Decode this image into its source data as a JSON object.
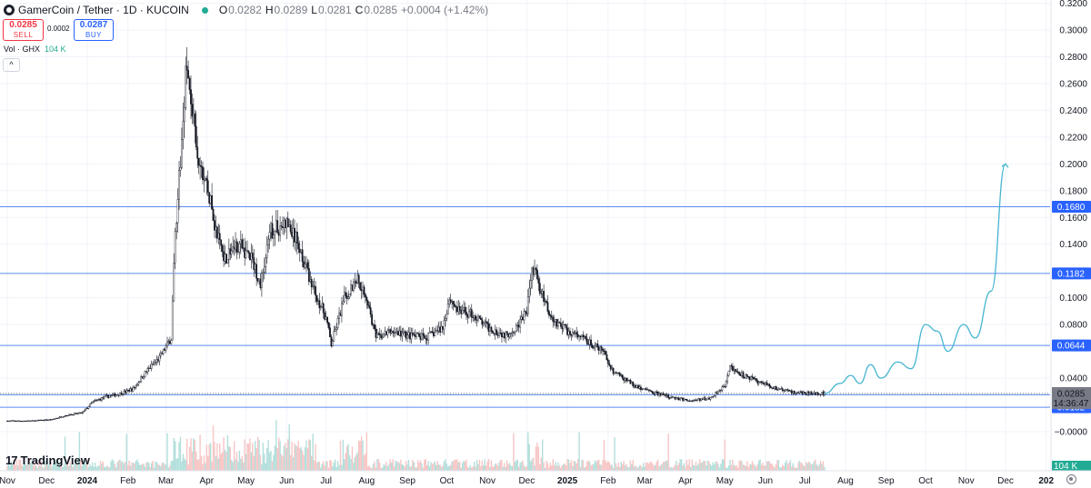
{
  "header": {
    "symbol": "GamerCoin / Tether · 1D · KUCOIN",
    "o_label": "O",
    "o_value": "0.0282",
    "h_label": "H",
    "h_value": "0.0289",
    "l_label": "L",
    "l_value": "0.0281",
    "c_label": "C",
    "c_value": "0.0285",
    "change": "+0.0004 (+1.42%)"
  },
  "trade": {
    "sell_price": "0.0285",
    "sell_label": "SELL",
    "spread": "0.0002",
    "buy_price": "0.0287",
    "buy_label": "BUY"
  },
  "volume": {
    "label": "Vol · GHX",
    "value": "104 K"
  },
  "logo": {
    "text": "TradingView"
  },
  "icons": {
    "symbol": "gamercoin-icon",
    "status": "market-open-dot-icon",
    "collapse": "chevron-up-icon",
    "settings": "gear-icon",
    "logo": "tradingview-logo-icon"
  },
  "colors": {
    "up": "#22ab94",
    "down": "#131722",
    "line": "#2962ff",
    "projection": "#45b5d1",
    "vol_up": "#b2dfdb",
    "vol_down": "#f7c5c5",
    "price_tag": "#787b86"
  },
  "chart_data": {
    "type": "candlestick",
    "y_ticks": [
      "0.3200",
      "0.3000",
      "0.2800",
      "0.2600",
      "0.2400",
      "0.2200",
      "0.2000",
      "0.1800",
      "0.1600",
      "0.1400",
      "0.1000",
      "0.0800",
      "0.0400",
      "−0.0000"
    ],
    "x_ticks": [
      "Nov",
      "Dec",
      "2024",
      "Feb",
      "Mar",
      "Apr",
      "May",
      "Jun",
      "Jul",
      "Aug",
      "Sep",
      "Oct",
      "Nov",
      "Dec",
      "2025",
      "Feb",
      "Mar",
      "Apr",
      "May",
      "Jun",
      "Jul",
      "Aug",
      "Sep",
      "Oct",
      "Nov",
      "Dec",
      "202"
    ],
    "ylim": [
      -0.01,
      0.32
    ],
    "price_series": [
      [
        "2023-11-01",
        0.008
      ],
      [
        "2023-11-20",
        0.008
      ],
      [
        "2023-12-05",
        0.009
      ],
      [
        "2023-12-15",
        0.012
      ],
      [
        "2023-12-28",
        0.014
      ],
      [
        "2024-01-05",
        0.022
      ],
      [
        "2024-01-15",
        0.026
      ],
      [
        "2024-01-25",
        0.028
      ],
      [
        "2024-02-05",
        0.032
      ],
      [
        "2024-02-15",
        0.045
      ],
      [
        "2024-02-25",
        0.055
      ],
      [
        "2024-03-05",
        0.07
      ],
      [
        "2024-03-08",
        0.15
      ],
      [
        "2024-03-12",
        0.2
      ],
      [
        "2024-03-16",
        0.27
      ],
      [
        "2024-03-20",
        0.25
      ],
      [
        "2024-03-25",
        0.2
      ],
      [
        "2024-04-01",
        0.185
      ],
      [
        "2024-04-08",
        0.15
      ],
      [
        "2024-04-15",
        0.13
      ],
      [
        "2024-04-25",
        0.14
      ],
      [
        "2024-05-05",
        0.13
      ],
      [
        "2024-05-12",
        0.11
      ],
      [
        "2024-05-20",
        0.15
      ],
      [
        "2024-06-01",
        0.155
      ],
      [
        "2024-06-10",
        0.14
      ],
      [
        "2024-06-20",
        0.11
      ],
      [
        "2024-07-01",
        0.085
      ],
      [
        "2024-07-05",
        0.065
      ],
      [
        "2024-07-15",
        0.1
      ],
      [
        "2024-07-25",
        0.115
      ],
      [
        "2024-08-01",
        0.1
      ],
      [
        "2024-08-08",
        0.07
      ],
      [
        "2024-08-20",
        0.075
      ],
      [
        "2024-09-01",
        0.072
      ],
      [
        "2024-09-15",
        0.07
      ],
      [
        "2024-09-28",
        0.078
      ],
      [
        "2024-10-03",
        0.1
      ],
      [
        "2024-10-10",
        0.09
      ],
      [
        "2024-10-20",
        0.088
      ],
      [
        "2024-11-01",
        0.078
      ],
      [
        "2024-11-15",
        0.072
      ],
      [
        "2024-11-25",
        0.08
      ],
      [
        "2024-12-01",
        0.09
      ],
      [
        "2024-12-05",
        0.125
      ],
      [
        "2024-12-10",
        0.11
      ],
      [
        "2024-12-20",
        0.085
      ],
      [
        "2025-01-01",
        0.075
      ],
      [
        "2025-01-15",
        0.068
      ],
      [
        "2025-01-28",
        0.06
      ],
      [
        "2025-02-05",
        0.045
      ],
      [
        "2025-02-20",
        0.035
      ],
      [
        "2025-03-05",
        0.03
      ],
      [
        "2025-03-20",
        0.026
      ],
      [
        "2025-04-05",
        0.023
      ],
      [
        "2025-04-20",
        0.025
      ],
      [
        "2025-05-01",
        0.035
      ],
      [
        "2025-05-05",
        0.048
      ],
      [
        "2025-05-15",
        0.042
      ],
      [
        "2025-05-25",
        0.038
      ],
      [
        "2025-06-10",
        0.032
      ],
      [
        "2025-06-25",
        0.029
      ],
      [
        "2025-07-10",
        0.0285
      ],
      [
        "2025-07-16",
        0.0285
      ]
    ],
    "projection_path": [
      [
        "2025-07-16",
        0.0285
      ],
      [
        "2025-07-28",
        0.036
      ],
      [
        "2025-08-05",
        0.042
      ],
      [
        "2025-08-12",
        0.036
      ],
      [
        "2025-08-20",
        0.05
      ],
      [
        "2025-08-28",
        0.04
      ],
      [
        "2025-09-10",
        0.052
      ],
      [
        "2025-09-20",
        0.047
      ],
      [
        "2025-10-01",
        0.08
      ],
      [
        "2025-10-10",
        0.075
      ],
      [
        "2025-10-18",
        0.06
      ],
      [
        "2025-10-30",
        0.08
      ],
      [
        "2025-11-08",
        0.07
      ],
      [
        "2025-11-20",
        0.105
      ],
      [
        "2025-12-01",
        0.2
      ]
    ],
    "levels": [
      {
        "value": 0.168,
        "label": "0.1680"
      },
      {
        "value": 0.1182,
        "label": "0.1182"
      },
      {
        "value": 0.0644,
        "label": "0.0644"
      },
      {
        "value": 0.0276,
        "label": "0.0276"
      },
      {
        "value": 0.0182,
        "label": "0.0182"
      }
    ],
    "current_price": {
      "value": 0.0285,
      "label": "0.0285",
      "countdown": "14:36:47"
    },
    "volume_tag": "104 K"
  }
}
